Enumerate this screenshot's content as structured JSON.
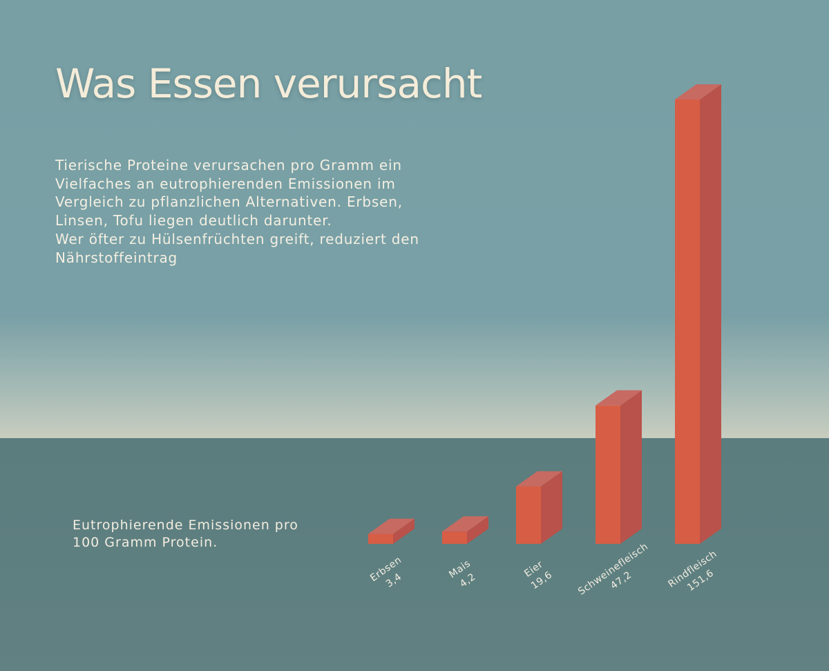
{
  "title": "Was Essen verursacht",
  "intro": {
    "line1": "Tierische Proteine verursachen pro Gramm ein Vielfaches an eutrophierenden Emissionen im Vergleich zu pflanzlichen Alternativen. Erbsen, Linsen, Tofu liegen deutlich darunter.",
    "line2": "Wer öfter zu Hülsenfrüchten greift, reduziert den Nährstoffeintrag"
  },
  "axis_caption": "Eutrophierende Emissionen pro 100 Gramm Protein.",
  "colors": {
    "bar_front": "#d85d45",
    "bar_side": "#b8524a",
    "bar_top": "#c76a62",
    "label_text": "#f2ede0"
  },
  "chart_data": {
    "type": "bar",
    "title": "Was Essen verursacht",
    "ylabel": "Eutrophierende Emissionen pro 100 Gramm Protein.",
    "categories": [
      "Erbsen",
      "Mais",
      "Eier",
      "Schweinefleisch",
      "Rindfleisch"
    ],
    "values": [
      3.4,
      4.2,
      19.6,
      47.2,
      151.6
    ],
    "value_labels": [
      "3,4",
      "4,2",
      "19,6",
      "47,2",
      "151,6"
    ],
    "style": "3d",
    "grid": false
  }
}
